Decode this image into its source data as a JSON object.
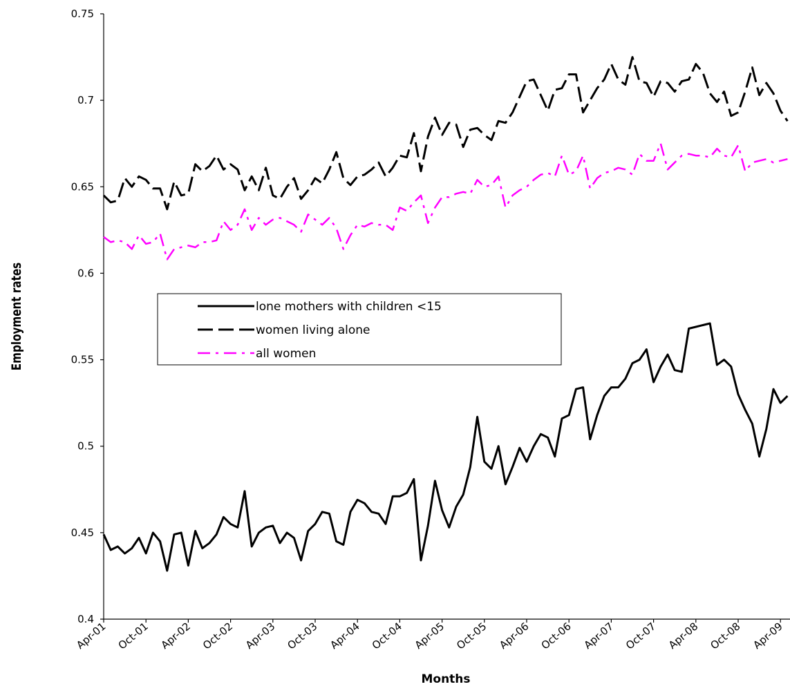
{
  "chart_data": {
    "type": "line",
    "categories": [
      "Apr-01",
      null,
      null,
      null,
      null,
      null,
      "Oct-01",
      null,
      null,
      null,
      null,
      null,
      "Apr-02",
      null,
      null,
      null,
      null,
      null,
      "Oct-02",
      null,
      null,
      null,
      null,
      null,
      "Apr-03",
      null,
      null,
      null,
      null,
      null,
      "Oct-03",
      null,
      null,
      null,
      null,
      null,
      "Apr-04",
      null,
      null,
      null,
      null,
      null,
      "Oct-04",
      null,
      null,
      null,
      null,
      null,
      "Apr-05",
      null,
      null,
      null,
      null,
      null,
      "Oct-05",
      null,
      null,
      null,
      null,
      null,
      "Apr-06",
      null,
      null,
      null,
      null,
      null,
      "Oct-06",
      null,
      null,
      null,
      null,
      null,
      "Apr-07",
      null,
      null,
      null,
      null,
      null,
      "Oct-07",
      null,
      null,
      null,
      null,
      null,
      "Apr-08",
      null,
      null,
      null,
      null,
      null,
      "Oct-08",
      null,
      null,
      null,
      null,
      null,
      "Apr-09",
      null
    ],
    "series": [
      {
        "name": "lone mothers with children <15",
        "color": "#000000",
        "style": "solid",
        "values": [
          0.449,
          0.44,
          0.442,
          0.438,
          0.441,
          0.447,
          0.438,
          0.45,
          0.445,
          0.428,
          0.449,
          0.45,
          0.431,
          0.451,
          0.441,
          0.444,
          0.449,
          0.459,
          0.455,
          0.453,
          0.474,
          0.442,
          0.45,
          0.453,
          0.454,
          0.444,
          0.45,
          0.447,
          0.434,
          0.451,
          0.455,
          0.462,
          0.461,
          0.445,
          0.443,
          0.462,
          0.469,
          0.467,
          0.462,
          0.461,
          0.455,
          0.471,
          0.471,
          0.473,
          0.481,
          0.434,
          0.454,
          0.48,
          0.463,
          0.453,
          0.465,
          0.472,
          0.488,
          0.517,
          0.491,
          0.487,
          0.5,
          0.478,
          0.488,
          0.499,
          0.491,
          0.5,
          0.507,
          0.505,
          0.494,
          0.516,
          0.518,
          0.533,
          0.534,
          0.504,
          0.518,
          0.529,
          0.534,
          0.534,
          0.539,
          0.548,
          0.55,
          0.556,
          0.537,
          0.546,
          0.553,
          0.544,
          0.543,
          0.568,
          0.569,
          0.57,
          0.571,
          0.547,
          0.55,
          0.546,
          0.53,
          0.521,
          0.513,
          0.494,
          0.51,
          0.533,
          0.525,
          0.529
        ]
      },
      {
        "name": "women living alone",
        "color": "#000000",
        "style": "dashed",
        "values": [
          0.645,
          0.641,
          0.642,
          0.655,
          0.65,
          0.656,
          0.654,
          0.649,
          0.649,
          0.637,
          0.653,
          0.645,
          0.646,
          0.663,
          0.659,
          0.662,
          0.668,
          0.66,
          0.663,
          0.66,
          0.648,
          0.656,
          0.648,
          0.661,
          0.645,
          0.643,
          0.65,
          0.655,
          0.643,
          0.648,
          0.655,
          0.652,
          0.66,
          0.67,
          0.655,
          0.651,
          0.656,
          0.657,
          0.66,
          0.664,
          0.656,
          0.661,
          0.668,
          0.667,
          0.681,
          0.659,
          0.679,
          0.69,
          0.68,
          0.687,
          0.686,
          0.673,
          0.683,
          0.684,
          0.68,
          0.677,
          0.688,
          0.687,
          0.693,
          0.702,
          0.711,
          0.712,
          0.703,
          0.694,
          0.706,
          0.707,
          0.715,
          0.715,
          0.693,
          0.7,
          0.707,
          0.712,
          0.721,
          0.712,
          0.709,
          0.725,
          0.711,
          0.71,
          0.702,
          0.711,
          0.71,
          0.705,
          0.711,
          0.712,
          0.721,
          0.716,
          0.704,
          0.699,
          0.705,
          0.691,
          0.693,
          0.705,
          0.719,
          0.703,
          0.71,
          0.704,
          0.694,
          0.688
        ]
      },
      {
        "name": "all women",
        "color": "#ff00ff",
        "style": "dashdot",
        "values": [
          0.621,
          0.618,
          0.619,
          0.618,
          0.614,
          0.622,
          0.617,
          0.618,
          0.623,
          0.608,
          0.614,
          0.615,
          0.616,
          0.615,
          0.618,
          0.618,
          0.619,
          0.63,
          0.625,
          0.628,
          0.637,
          0.625,
          0.632,
          0.628,
          0.631,
          0.632,
          0.63,
          0.628,
          0.624,
          0.634,
          0.631,
          0.628,
          0.632,
          0.626,
          0.614,
          0.622,
          0.628,
          0.627,
          0.629,
          0.628,
          0.628,
          0.625,
          0.638,
          0.636,
          0.641,
          0.645,
          0.629,
          0.638,
          0.644,
          0.644,
          0.646,
          0.647,
          0.646,
          0.654,
          0.65,
          0.651,
          0.656,
          0.638,
          0.645,
          0.648,
          0.65,
          0.654,
          0.657,
          0.658,
          0.656,
          0.668,
          0.657,
          0.659,
          0.668,
          0.649,
          0.655,
          0.658,
          0.659,
          0.661,
          0.66,
          0.657,
          0.669,
          0.665,
          0.665,
          0.675,
          0.66,
          0.664,
          0.668,
          0.669,
          0.668,
          0.668,
          0.667,
          0.672,
          0.668,
          0.667,
          0.674,
          0.659,
          0.664,
          0.665,
          0.666,
          0.664,
          0.665,
          0.666
        ]
      }
    ],
    "xlabel": "Months",
    "ylabel": "Employment rates",
    "ylim": [
      0.4,
      0.75
    ],
    "yticks": [
      0.4,
      0.45,
      0.5,
      0.55,
      0.6,
      0.65,
      0.7,
      0.75
    ],
    "grid": false,
    "legend": "center-left"
  }
}
